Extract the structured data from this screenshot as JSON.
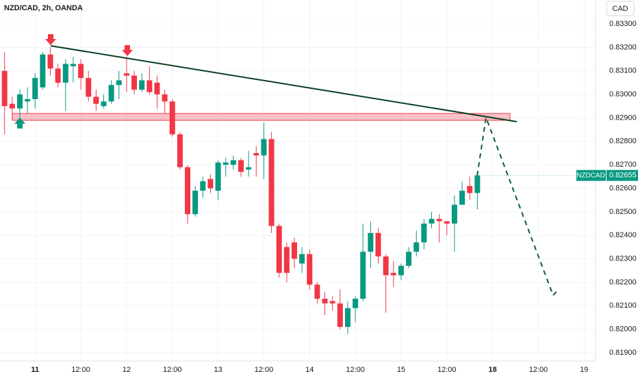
{
  "chart_data": {
    "type": "candlestick",
    "title": "NZD/CAD, 2h, OANDA",
    "currency": "CAD",
    "symbol": "NZDCAD",
    "last_price": 0.82655,
    "up_color": "#089981",
    "down_color": "#f23645",
    "grid": true,
    "x": [
      0,
      1,
      2,
      3,
      4,
      5,
      6,
      7,
      8,
      9,
      10,
      11,
      12,
      13,
      14,
      15,
      16,
      17,
      18,
      19,
      20,
      21,
      22,
      23,
      24,
      25,
      26,
      27,
      28,
      29,
      30,
      31,
      32,
      33,
      34,
      35,
      36,
      37,
      38,
      39,
      40,
      41,
      42,
      43,
      44,
      45,
      46,
      47,
      48,
      49,
      50,
      51,
      52,
      53,
      54,
      55,
      56,
      57,
      58,
      59,
      60,
      61,
      62
    ],
    "open": [
      0.831,
      0.8296,
      0.8294,
      0.8297,
      0.8298,
      0.8303,
      0.8317,
      0.8311,
      0.8305,
      0.8312,
      0.8313,
      0.8307,
      0.8299,
      0.8295,
      0.8297,
      0.8304,
      0.8309,
      0.8308,
      0.8302,
      0.8306,
      0.8305,
      0.83,
      0.8297,
      0.8283,
      0.8269,
      0.8249,
      0.8259,
      0.8264,
      0.8259,
      0.827,
      0.827,
      0.8272,
      0.8268,
      0.8275,
      0.8274,
      0.8281,
      0.8244,
      0.8235,
      0.8237,
      0.8228,
      0.8232,
      0.8219,
      0.8213,
      0.8212,
      0.8211,
      0.8201,
      0.8209,
      0.8213,
      0.8233,
      0.8241,
      0.8231,
      0.8224,
      0.8223,
      0.8227,
      0.8233,
      0.8237,
      0.8245,
      0.8247,
      0.8246,
      0.8245,
      0.8253,
      0.8261,
      0.8258
    ],
    "high": [
      0.8318,
      0.8299,
      0.8302,
      0.8303,
      0.8309,
      0.8318,
      0.832,
      0.8313,
      0.8315,
      0.8316,
      0.8315,
      0.831,
      0.8302,
      0.83,
      0.8306,
      0.831,
      0.8316,
      0.831,
      0.8309,
      0.8312,
      0.8308,
      0.8302,
      0.8298,
      0.8284,
      0.827,
      0.8261,
      0.8265,
      0.8266,
      0.8272,
      0.8273,
      0.8274,
      0.8273,
      0.8276,
      0.8278,
      0.8288,
      0.8284,
      0.8245,
      0.8237,
      0.8239,
      0.8235,
      0.8234,
      0.822,
      0.8216,
      0.8214,
      0.8217,
      0.8212,
      0.8214,
      0.8245,
      0.8246,
      0.8243,
      0.8232,
      0.8229,
      0.8228,
      0.8235,
      0.8242,
      0.8247,
      0.825,
      0.8249,
      0.8246,
      0.8257,
      0.8263,
      0.8265,
      0.8267
    ],
    "low": [
      0.8283,
      0.829,
      0.829,
      0.8292,
      0.8294,
      0.8302,
      0.8308,
      0.8303,
      0.8293,
      0.8305,
      0.8302,
      0.8297,
      0.8293,
      0.8294,
      0.8296,
      0.8298,
      0.8301,
      0.83,
      0.8301,
      0.83,
      0.8294,
      0.8292,
      0.8282,
      0.8268,
      0.8245,
      0.8248,
      0.8256,
      0.8258,
      0.8255,
      0.8265,
      0.8268,
      0.8265,
      0.8265,
      0.8265,
      0.8264,
      0.8241,
      0.8222,
      0.822,
      0.8226,
      0.8224,
      0.8217,
      0.8211,
      0.8206,
      0.8208,
      0.82,
      0.8198,
      0.8203,
      0.8212,
      0.8226,
      0.8228,
      0.8207,
      0.8218,
      0.8221,
      0.8226,
      0.8231,
      0.8234,
      0.8243,
      0.8237,
      0.824,
      0.8233,
      0.8253,
      0.8255,
      0.8251
    ],
    "close": [
      0.8295,
      0.8294,
      0.83,
      0.8298,
      0.8307,
      0.8317,
      0.8311,
      0.8305,
      0.8313,
      0.8313,
      0.8307,
      0.8299,
      0.8296,
      0.8297,
      0.8304,
      0.8306,
      0.8308,
      0.8302,
      0.8306,
      0.8301,
      0.83,
      0.8297,
      0.8283,
      0.8269,
      0.8249,
      0.8259,
      0.8263,
      0.826,
      0.8271,
      0.8271,
      0.8272,
      0.8267,
      0.8269,
      0.8274,
      0.8281,
      0.8244,
      0.8224,
      0.8224,
      0.823,
      0.8232,
      0.8219,
      0.8213,
      0.8211,
      0.8211,
      0.8201,
      0.8209,
      0.8213,
      0.8233,
      0.8241,
      0.8231,
      0.8223,
      0.8223,
      0.8227,
      0.8233,
      0.8237,
      0.8245,
      0.8247,
      0.8246,
      0.8245,
      0.8253,
      0.8259,
      0.8258,
      0.82655
    ],
    "xlim": [
      -0.6,
      77.5
    ],
    "xticks": [
      {
        "value": 4,
        "label": "11",
        "bold": true
      },
      {
        "value": 10,
        "label": "12:00"
      },
      {
        "value": 16,
        "label": "12"
      },
      {
        "value": 22,
        "label": "12:00"
      },
      {
        "value": 28,
        "label": "13"
      },
      {
        "value": 34,
        "label": "12:00"
      },
      {
        "value": 40,
        "label": "14"
      },
      {
        "value": 46,
        "label": "12:00"
      },
      {
        "value": 52,
        "label": "15"
      },
      {
        "value": 58,
        "label": "12:00"
      },
      {
        "value": 64,
        "label": "18",
        "bold": true
      },
      {
        "value": 70,
        "label": "12:00"
      },
      {
        "value": 76,
        "label": "19"
      }
    ],
    "ylim": [
      0.81865,
      0.83402
    ],
    "yticks": [
      {
        "value": 0.833,
        "label": "0.83300"
      },
      {
        "value": 0.832,
        "label": "0.83200"
      },
      {
        "value": 0.831,
        "label": "0.83100"
      },
      {
        "value": 0.83,
        "label": "0.83000"
      },
      {
        "value": 0.829,
        "label": "0.82900"
      },
      {
        "value": 0.828,
        "label": "0.82800"
      },
      {
        "value": 0.827,
        "label": "0.82700"
      },
      {
        "value": 0.826,
        "label": "0.82600"
      },
      {
        "value": 0.825,
        "label": "0.82500"
      },
      {
        "value": 0.824,
        "label": "0.82400"
      },
      {
        "value": 0.823,
        "label": "0.82300"
      },
      {
        "value": 0.822,
        "label": "0.82200"
      },
      {
        "value": 0.821,
        "label": "0.82100"
      },
      {
        "value": 0.82,
        "label": "0.82000"
      },
      {
        "value": 0.819,
        "label": "0.81900"
      }
    ]
  }
}
